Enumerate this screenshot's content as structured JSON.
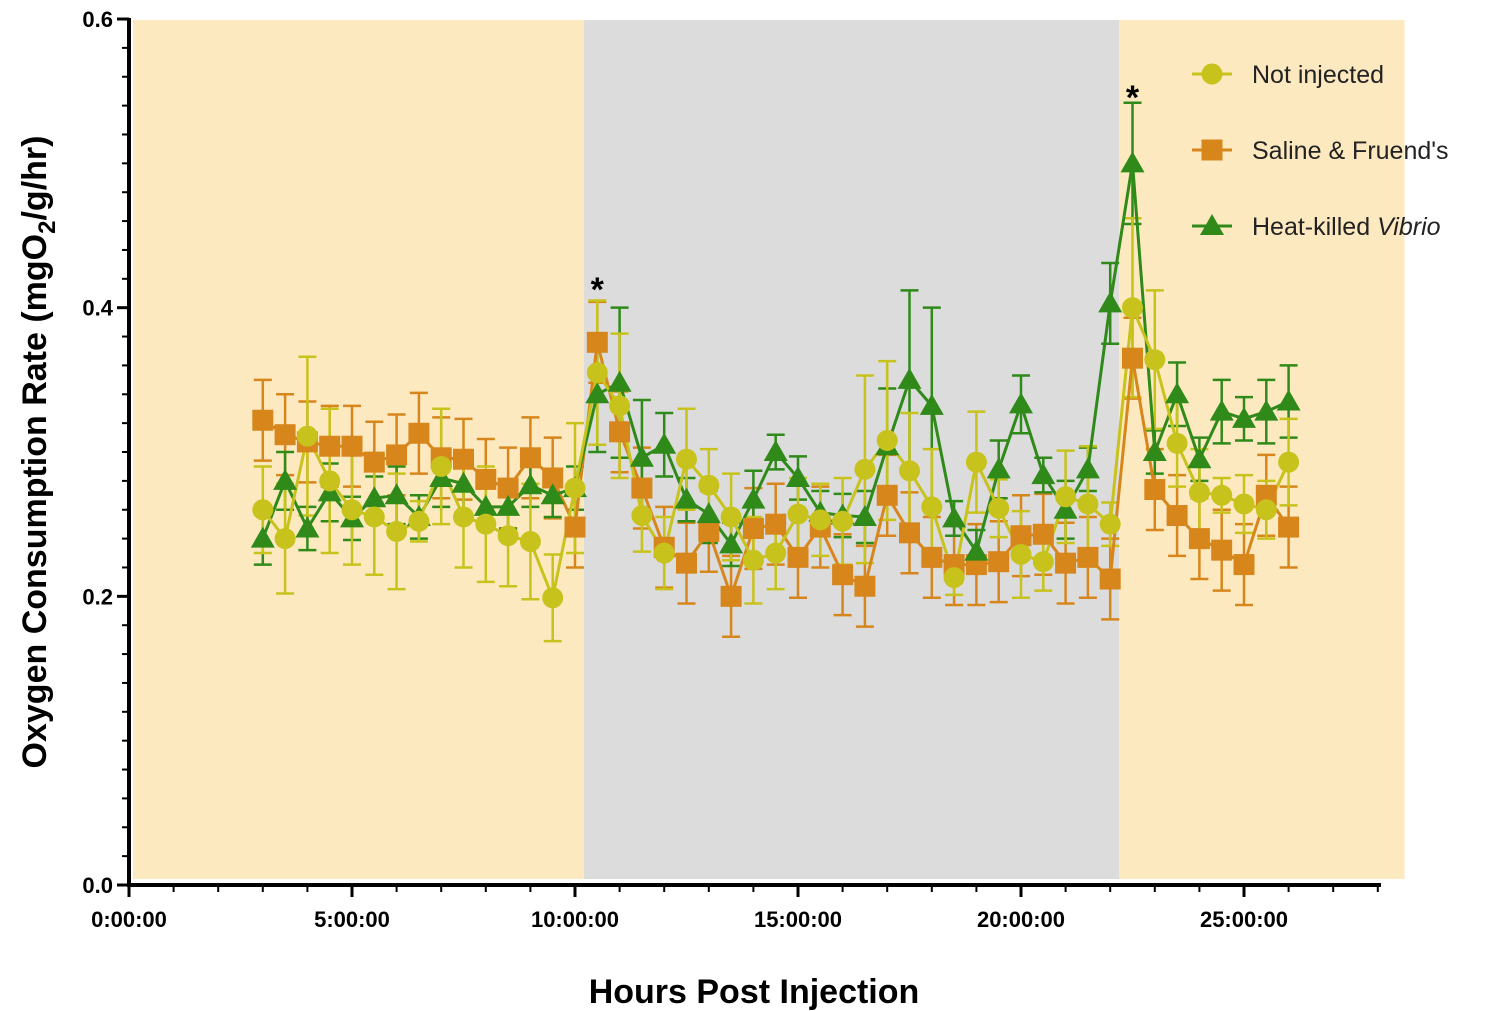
{
  "chart_data": {
    "type": "line",
    "xlabel": "Hours Post Injection",
    "ylabel_main": "Oxygen Consumption Rate (mgO",
    "ylabel_sub": "2",
    "ylabel_end": "/g/hr)",
    "xlim": [
      0,
      28
    ],
    "ylim": [
      0,
      0.6
    ],
    "y_ticks": [
      {
        "value": 0.0,
        "label": "0.0"
      },
      {
        "value": 0.2,
        "label": "0.2"
      },
      {
        "value": 0.4,
        "label": "0.4"
      },
      {
        "value": 0.6,
        "label": "0.6"
      }
    ],
    "x_ticks": [
      {
        "value": 0,
        "label": "0:00:00"
      },
      {
        "value": 5,
        "label": "5:00:00"
      },
      {
        "value": 10,
        "label": "10:00:00"
      },
      {
        "value": 15,
        "label": "15:00:00"
      },
      {
        "value": 20,
        "label": "20:00:00"
      },
      {
        "value": 25,
        "label": "25:00:00"
      }
    ],
    "regions": [
      {
        "from": 0,
        "to": 10.2,
        "color": "#fde9c0"
      },
      {
        "from": 10.2,
        "to": 22.2,
        "color": "#dcdcdc"
      },
      {
        "from": 22.2,
        "to": 28.6,
        "color": "#fde9c0"
      }
    ],
    "x": [
      3,
      3.5,
      4,
      4.5,
      5,
      5.5,
      6,
      6.5,
      7,
      7.5,
      8,
      8.5,
      9,
      9.5,
      10,
      10.5,
      11,
      11.5,
      12,
      12.5,
      13,
      13.5,
      14,
      14.5,
      15,
      15.5,
      16,
      16.5,
      17,
      17.5,
      18,
      18.5,
      19,
      19.5,
      20,
      20.5,
      21,
      21.5,
      22,
      22.5,
      23,
      23.5,
      24,
      24.5,
      25,
      25.5,
      26
    ],
    "series": [
      {
        "name": "Not injected",
        "name_italic": "",
        "marker": "circle",
        "color": "#c8c21c",
        "errorColor": "#c8c21c",
        "y": [
          0.26,
          0.24,
          0.311,
          0.28,
          0.26,
          0.255,
          0.245,
          0.252,
          0.29,
          0.255,
          0.25,
          0.242,
          0.238,
          0.199,
          0.275,
          0.355,
          0.332,
          0.256,
          0.23,
          0.295,
          0.277,
          0.255,
          0.225,
          0.23,
          0.257,
          0.253,
          0.252,
          0.288,
          0.308,
          0.287,
          0.262,
          0.213,
          0.293,
          0.261,
          0.229,
          0.224,
          0.269,
          0.264,
          0.25,
          0.4,
          0.364,
          0.306,
          0.272,
          0.27,
          0.264,
          0.26,
          0.293
        ],
        "err": [
          0.03,
          0.038,
          0.055,
          0.05,
          0.038,
          0.04,
          0.04,
          0.014,
          0.04,
          0.035,
          0.04,
          0.035,
          0.04,
          0.03,
          0.045,
          0.05,
          0.05,
          0.025,
          0.025,
          0.035,
          0.025,
          0.03,
          0.03,
          0.025,
          0.025,
          0.025,
          0.03,
          0.065,
          0.055,
          0.04,
          0.04,
          0.012,
          0.035,
          0.02,
          0.03,
          0.02,
          0.032,
          0.04,
          0.015,
          0.062,
          0.048,
          0.03,
          0.03,
          0.012,
          0.02,
          0.02,
          0.03
        ]
      },
      {
        "name": "Saline & Fruend's",
        "name_italic": "",
        "marker": "square",
        "color": "#d7861c",
        "errorColor": "#d7861c",
        "y": [
          0.322,
          0.312,
          0.307,
          0.304,
          0.304,
          0.293,
          0.298,
          0.313,
          0.296,
          0.295,
          0.281,
          0.275,
          0.296,
          0.282,
          0.248,
          0.376,
          0.314,
          0.275,
          0.234,
          0.223,
          0.245,
          0.2,
          0.247,
          0.25,
          0.227,
          0.248,
          0.215,
          0.207,
          0.27,
          0.244,
          0.227,
          0.222,
          0.222,
          0.224,
          0.242,
          0.243,
          0.223,
          0.227,
          0.212,
          0.365,
          0.274,
          0.256,
          0.24,
          0.232,
          0.222,
          0.27,
          0.248
        ]
      },
      {
        "name": "Heat-killed ",
        "name_italic": "Vibrio",
        "marker": "triangle",
        "color": "#2f8a1a",
        "errorColor": "#2f8a1a",
        "y": [
          0.24,
          0.28,
          0.247,
          0.272,
          0.254,
          0.268,
          0.27,
          0.255,
          0.282,
          0.278,
          0.262,
          0.262,
          0.277,
          0.27,
          0.275,
          0.34,
          0.348,
          0.296,
          0.305,
          0.267,
          0.257,
          0.236,
          0.267,
          0.3,
          0.282,
          0.258,
          0.256,
          0.255,
          0.304,
          0.35,
          0.332,
          0.254,
          0.231,
          0.288,
          0.333,
          0.284,
          0.26,
          0.288,
          0.403,
          0.5,
          0.3,
          0.34,
          0.295,
          0.328,
          0.323,
          0.328,
          0.335
        ],
        "err": [
          0.018,
          0.02,
          0.015,
          0.02,
          0.015,
          0.015,
          0.02,
          0.015,
          0.02,
          0.02,
          0.015,
          0.015,
          0.015,
          0.015,
          0.015,
          0.04,
          0.052,
          0.04,
          0.022,
          0.015,
          0.02,
          0.015,
          0.02,
          0.012,
          0.015,
          0.015,
          0.015,
          0.018,
          0.04,
          0.062,
          0.068,
          0.012,
          0.015,
          0.02,
          0.02,
          0.012,
          0.02,
          0.015,
          0.028,
          0.042,
          0.015,
          0.022,
          0.015,
          0.022,
          0.015,
          0.022,
          0.025
        ]
      }
    ],
    "annotations": [
      {
        "x": 10.5,
        "y": 0.42,
        "text": "*"
      },
      {
        "x": 22.5,
        "y": 0.553,
        "text": "*"
      }
    ],
    "legend": "top-right"
  }
}
